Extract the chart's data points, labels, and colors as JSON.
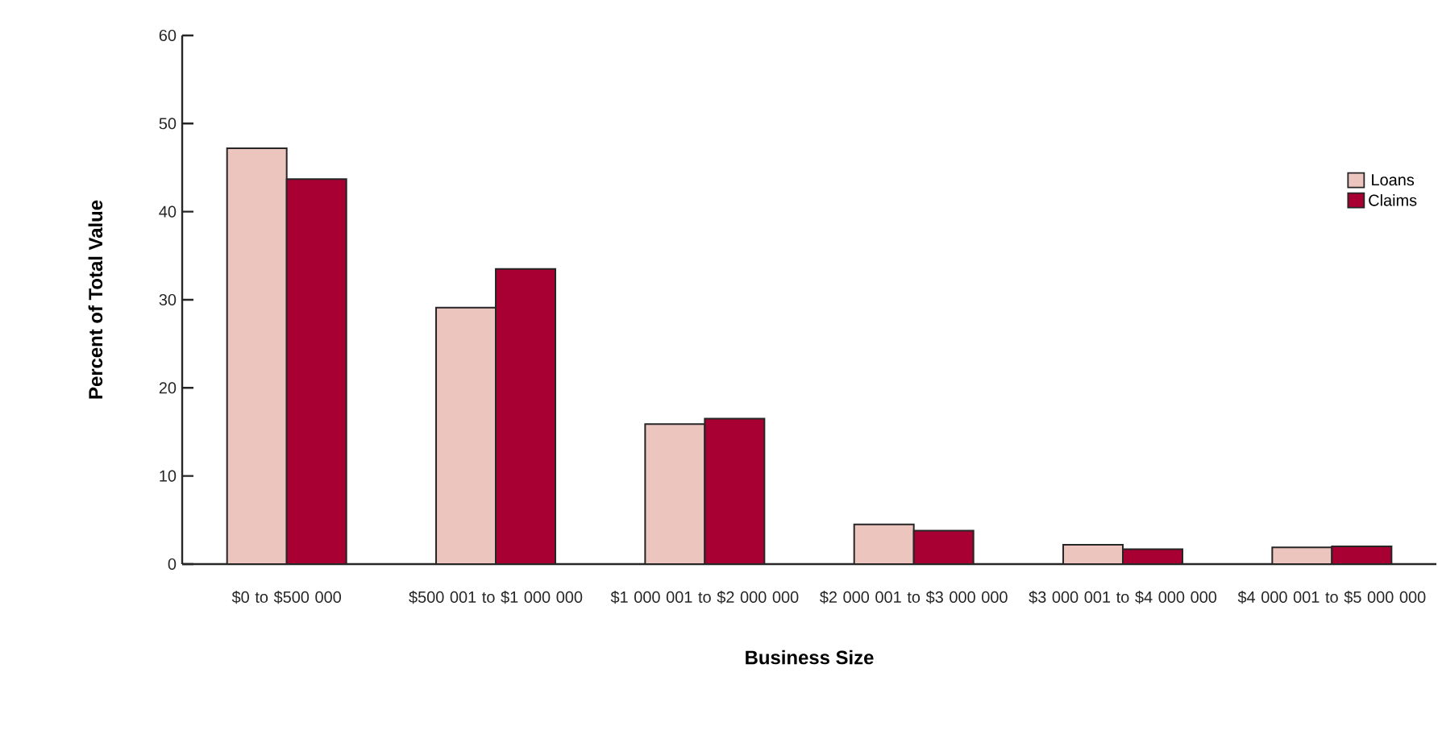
{
  "chart_data": {
    "type": "bar",
    "xlabel": "Business Size",
    "ylabel": "Percent of Total Value",
    "categories": [
      "$0 to $500 000",
      "$500 001 to $1 000 000",
      "$1 000 001 to $2 000 000",
      "$2 000 001 to $3 000 000",
      "$3 000 001 to $4 000 000",
      "$4 000 001 to $5 000 000"
    ],
    "series": [
      {
        "name": "Loans",
        "color": "#ebc5be",
        "values": [
          47.2,
          29.1,
          15.9,
          4.5,
          2.2,
          1.9
        ]
      },
      {
        "name": "Claims",
        "color": "#a80032",
        "values": [
          43.7,
          33.5,
          16.5,
          3.8,
          1.7,
          2.0
        ]
      }
    ],
    "ylim": [
      0,
      60
    ],
    "yticks": [
      0,
      10,
      20,
      30,
      40,
      50,
      60
    ],
    "grid": false,
    "legend": "right"
  }
}
